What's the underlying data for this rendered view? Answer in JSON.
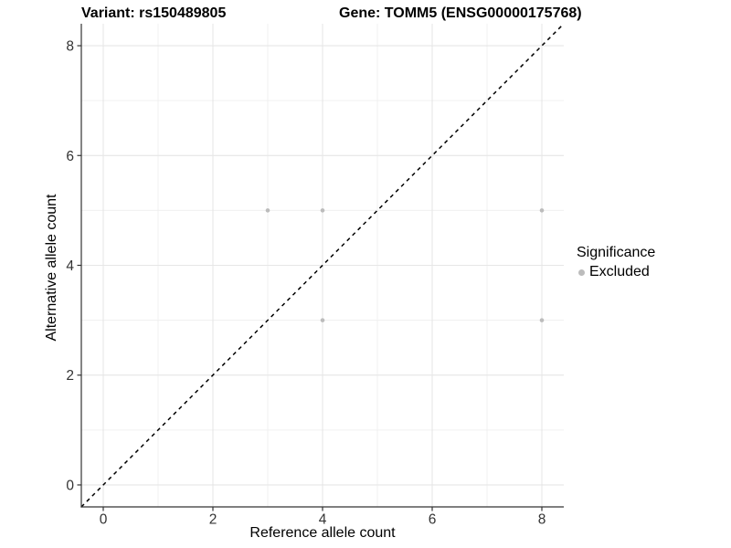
{
  "title": {
    "variant": "Variant: rs150489805",
    "gene": "Gene: TOMM5 (ENSG00000175768)"
  },
  "legend": {
    "title": "Significance",
    "items": [
      {
        "label": "Excluded",
        "color": "#bcbcbc"
      }
    ]
  },
  "chart_data": {
    "type": "scatter",
    "title": "Variant: rs150489805 — Gene: TOMM5 (ENSG00000175768)",
    "xlabel": "Reference allele count",
    "ylabel": "Alternative allele count",
    "xlim": [
      -0.4,
      8.4
    ],
    "ylim": [
      -0.4,
      8.4
    ],
    "x_ticks": [
      0,
      2,
      4,
      6,
      8
    ],
    "y_ticks": [
      0,
      2,
      4,
      6,
      8
    ],
    "minor_gridlines": [
      1,
      3,
      5,
      7
    ],
    "grid": true,
    "legend_position": "right",
    "series": [
      {
        "name": "Excluded",
        "color": "#bcbcbc",
        "points": [
          [
            3,
            5
          ],
          [
            4,
            5
          ],
          [
            8,
            5
          ],
          [
            4,
            3
          ],
          [
            8,
            3
          ]
        ]
      }
    ],
    "reference_line": {
      "kind": "y=x",
      "style": "dashed",
      "color": "#000000"
    }
  },
  "style": {
    "grid_major_color": "#e6e6e6",
    "grid_minor_color": "#f0f0f0",
    "axis_color": "#333333",
    "tick_label_color": "#333333",
    "background": "#ffffff"
  }
}
